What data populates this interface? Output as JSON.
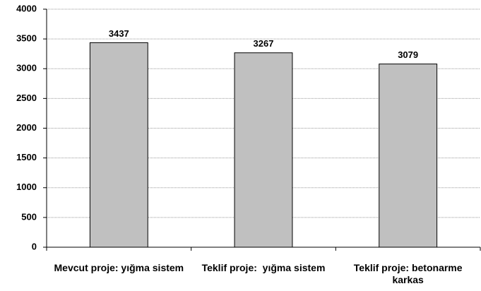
{
  "chart_data": {
    "type": "bar",
    "categories": [
      "Mevcut proje: yığma sistem",
      "Teklif proje:  yığma sistem",
      "Teklif proje: betonarme karkas"
    ],
    "values": [
      3437,
      3267,
      3079
    ],
    "color": "#c0c0c0",
    "ylim": [
      0,
      4000
    ],
    "yticks": [
      0,
      500,
      1000,
      1500,
      2000,
      2500,
      3000,
      3500,
      4000
    ],
    "grid": true
  }
}
